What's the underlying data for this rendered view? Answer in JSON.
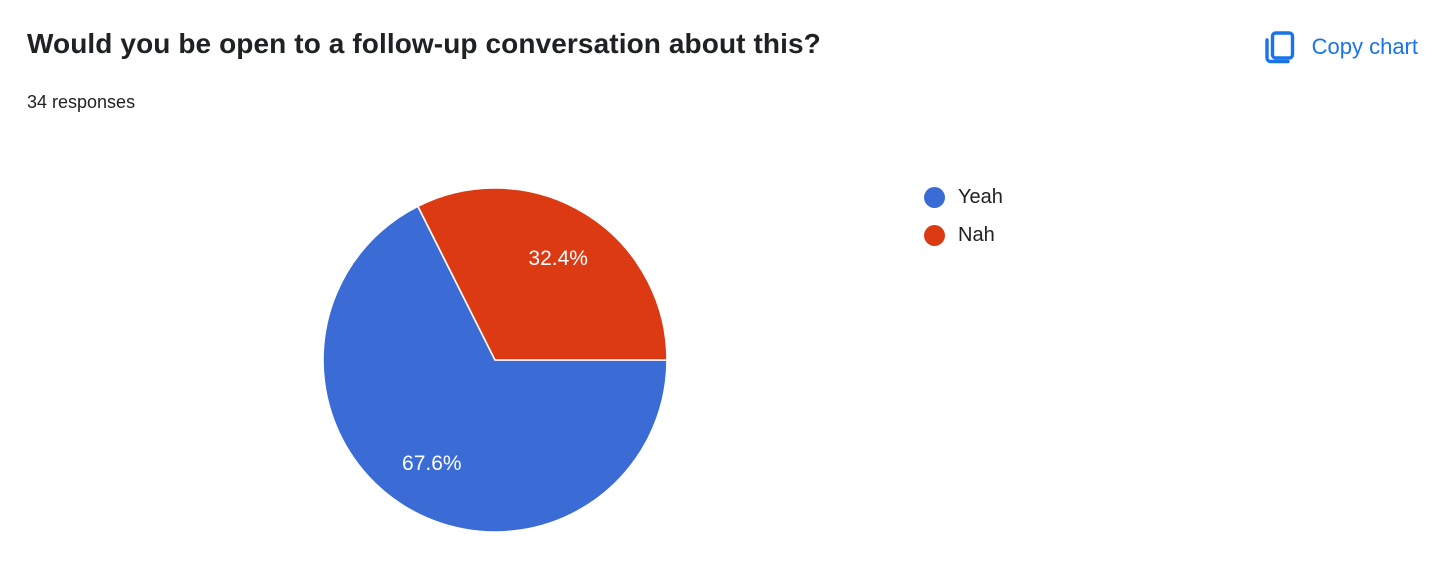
{
  "header": {
    "title": "Would you be open to a follow-up conversation about this?",
    "subtitle": "34 responses"
  },
  "toolbar": {
    "copy_chart_label": "Copy chart"
  },
  "colors": {
    "accent": "#1a73e8",
    "text": "#202124",
    "slice_label_text": "#ffffff",
    "background": "#ffffff"
  },
  "chart_data": {
    "type": "pie",
    "title": "Would you be open to a follow-up conversation about this?",
    "subtitle": "34 responses",
    "total_responses": 34,
    "legend_position": "right",
    "start_angle_deg": 0,
    "direction": "clockwise",
    "label_radius_ratio": 0.7,
    "slices": [
      {
        "label": "Yeah",
        "value_pct": 67.6,
        "display": "67.6%",
        "color": "#3b6bd4"
      },
      {
        "label": "Nah",
        "value_pct": 32.4,
        "display": "32.4%",
        "color": "#dc3a13"
      }
    ]
  }
}
